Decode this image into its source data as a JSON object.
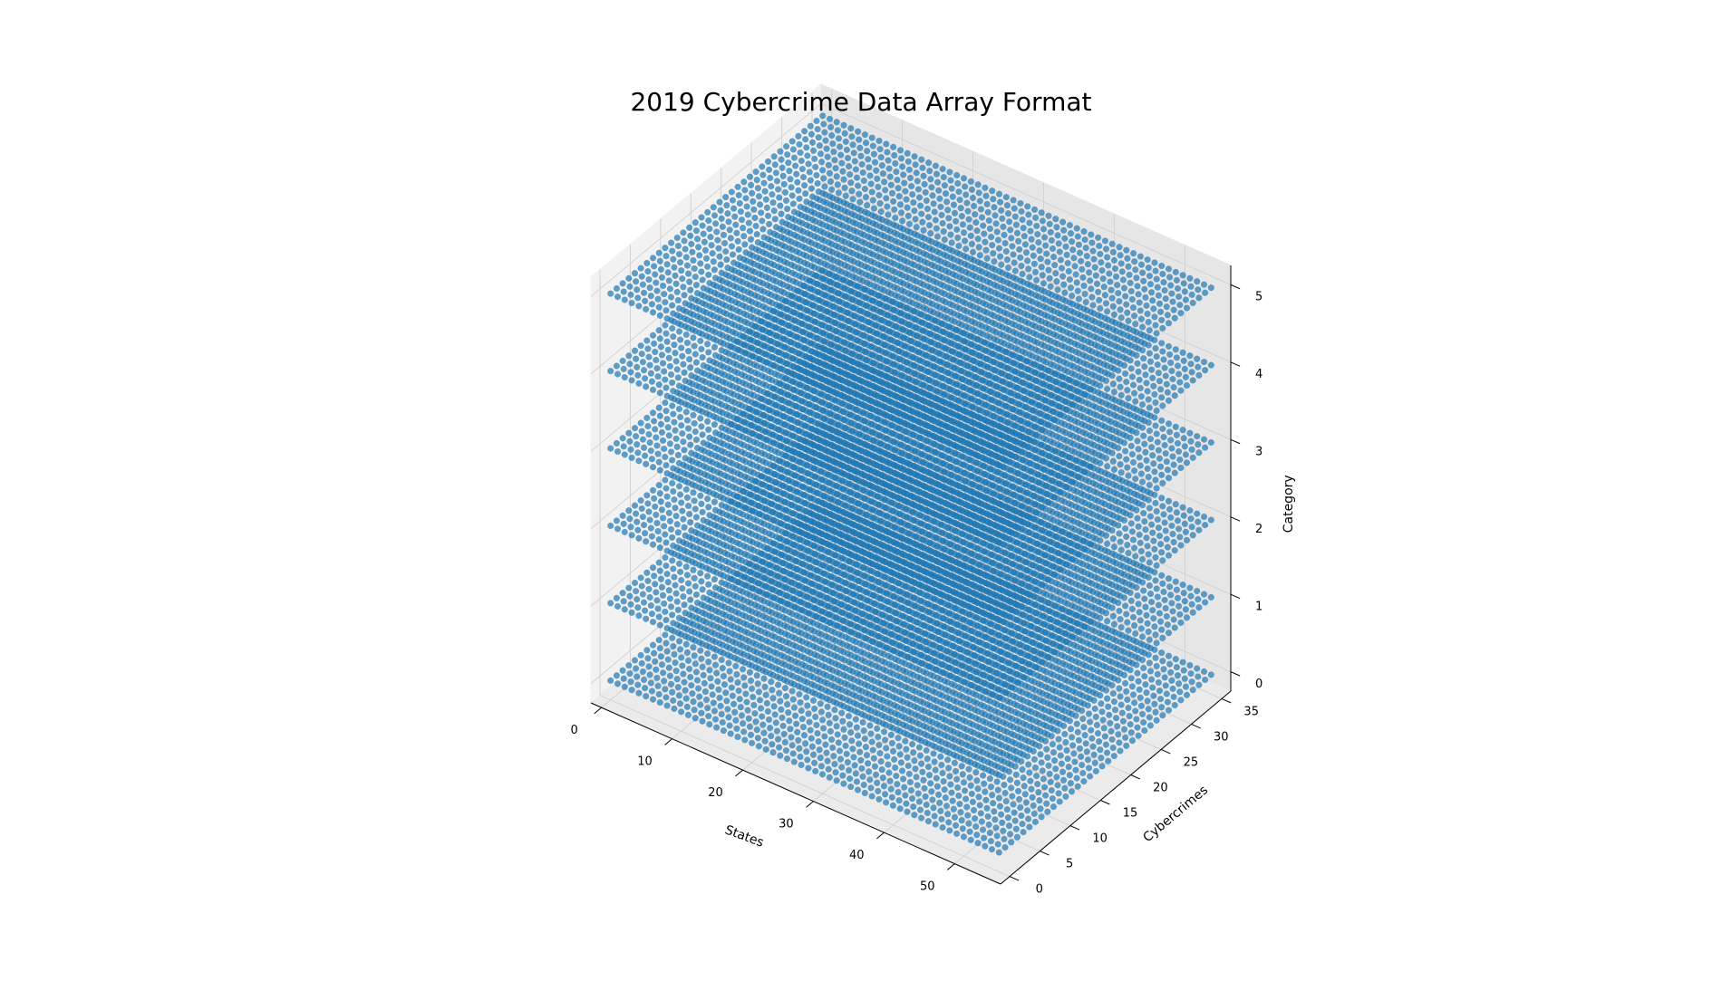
{
  "chart_data": {
    "type": "scatter",
    "projection": "3d",
    "title": "2019 Cybercrime Data Array Format",
    "xlabel": "States",
    "ylabel": "Cybercrimes",
    "zlabel": "Category",
    "x_grid": {
      "start": 0,
      "stop": 55,
      "step": 1
    },
    "y_grid": {
      "start": 0,
      "stop": 35,
      "step": 1
    },
    "z_levels": [
      0,
      1,
      2,
      3,
      4,
      5
    ],
    "xticks": [
      0,
      10,
      20,
      30,
      40,
      50
    ],
    "yticks": [
      0,
      5,
      10,
      15,
      20,
      25,
      30,
      35
    ],
    "zticks": [
      0,
      1,
      2,
      3,
      4,
      5
    ],
    "xlim": [
      -1.5,
      56.5
    ],
    "ylim": [
      -1.5,
      36.5
    ],
    "zlim": [
      -0.25,
      5.25
    ],
    "grid": true,
    "colors": {
      "points": "#1f77b4"
    }
  }
}
